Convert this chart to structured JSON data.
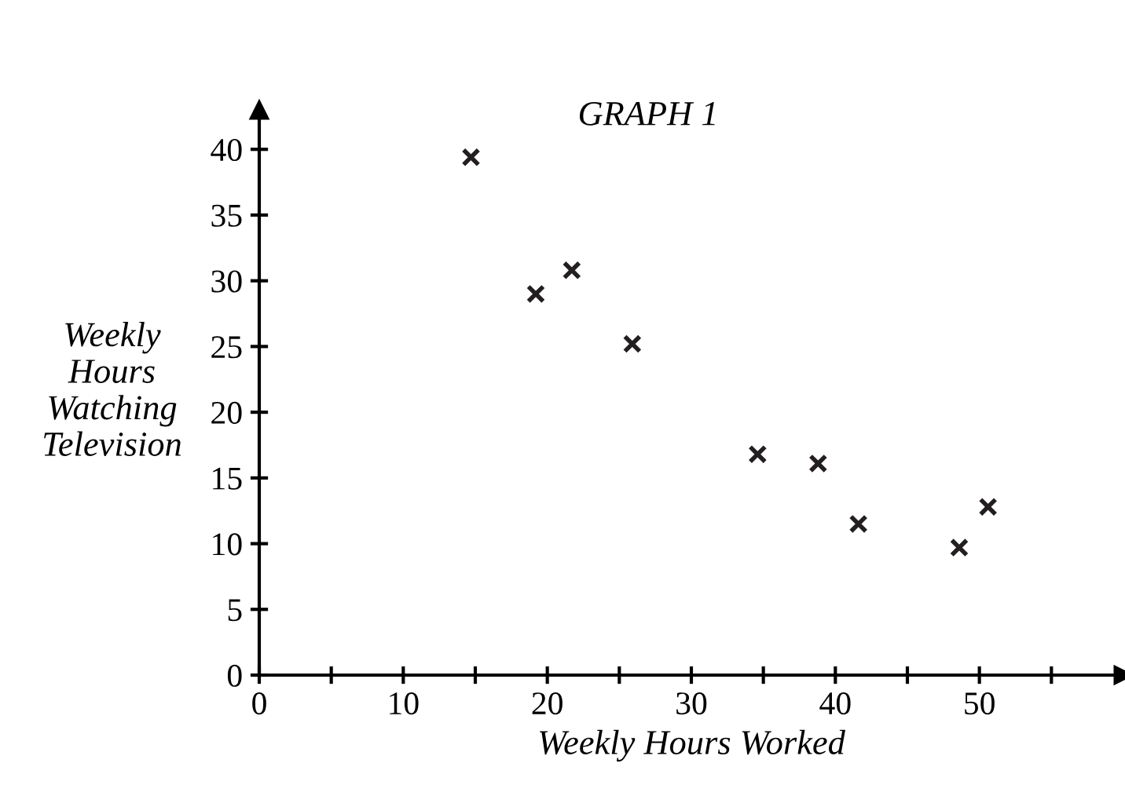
{
  "chart_data": {
    "type": "scatter",
    "title": "GRAPH 1",
    "xlabel": "Weekly Hours Worked",
    "ylabel": "Weekly\nHours\nWatching\nTelevision",
    "x": [
      14.7,
      19.2,
      21.7,
      25.9,
      34.6,
      38.8,
      41.6,
      48.6,
      50.6
    ],
    "values": [
      39.4,
      29.0,
      30.8,
      25.2,
      16.8,
      16.1,
      11.5,
      9.7,
      12.8
    ],
    "color": "#231f20",
    "marker": "cross",
    "xlim": [
      0,
      60
    ],
    "ylim": [
      0,
      43
    ],
    "xticks": [
      0,
      {
        "value": 5,
        "label": null
      },
      10,
      {
        "value": 15,
        "label": null
      },
      20,
      {
        "value": 25,
        "label": null
      },
      30,
      {
        "value": 35,
        "label": null
      },
      40,
      {
        "value": 45,
        "label": null
      },
      50,
      {
        "value": 55,
        "label": null
      }
    ],
    "yticks": [
      0,
      5,
      10,
      15,
      20,
      25,
      30,
      35,
      40
    ],
    "grid": false,
    "legend": false
  }
}
